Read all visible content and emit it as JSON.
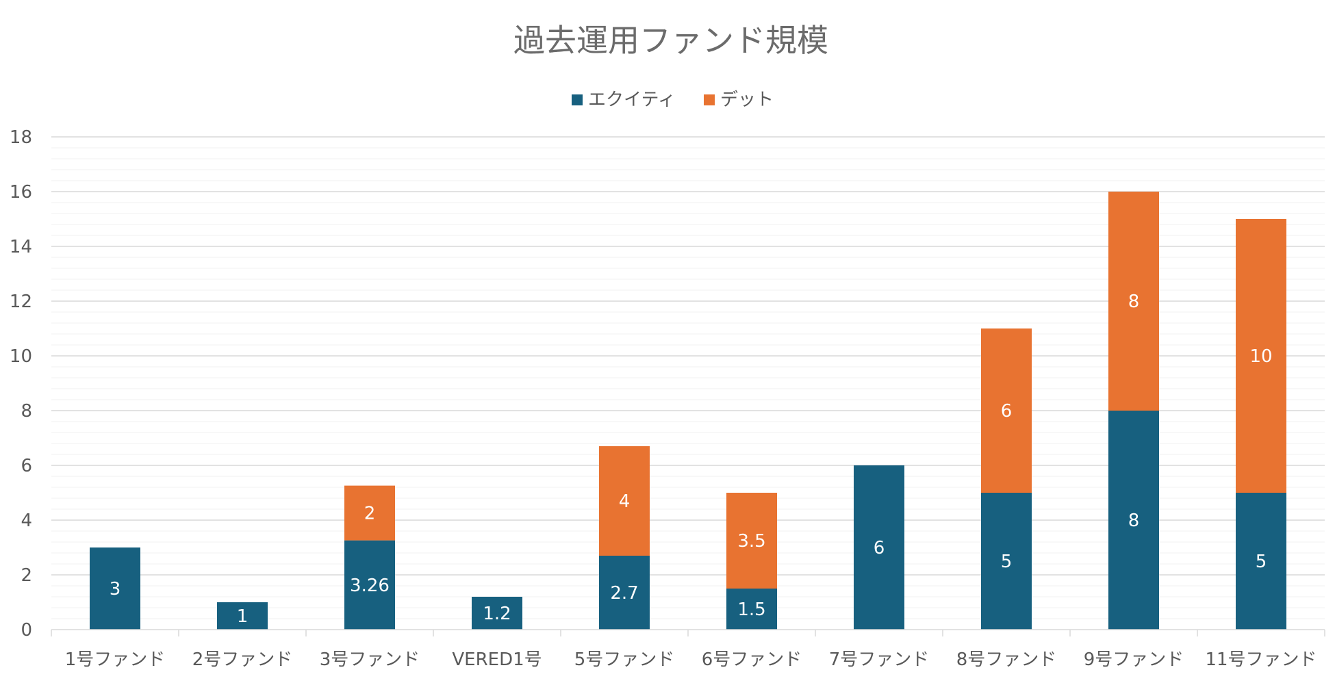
{
  "chart_data": {
    "type": "bar",
    "stacked": true,
    "title": "過去運用ファンド規模",
    "xlabel": "",
    "ylabel": "",
    "ylim": [
      0,
      18
    ],
    "y_ticks": [
      0,
      2,
      4,
      6,
      8,
      10,
      12,
      14,
      16,
      18
    ],
    "grid": true,
    "legend_position": "top",
    "categories": [
      "1号ファンド",
      "2号ファンド",
      "3号ファンド",
      "VERED1号",
      "5号ファンド",
      "6号ファンド",
      "7号ファンド",
      "8号ファンド",
      "9号ファンド",
      "11号ファンド"
    ],
    "series": [
      {
        "name": "エクイティ",
        "color": "#17607f",
        "values": [
          3,
          1,
          3.26,
          1.2,
          2.7,
          1.5,
          6,
          5,
          8,
          5
        ],
        "labels": [
          "3",
          "1",
          "3.26",
          "1.2",
          "2.7",
          "1.5",
          "6",
          "5",
          "8",
          "5"
        ]
      },
      {
        "name": "デット",
        "color": "#e87331",
        "values": [
          0,
          0,
          2,
          0,
          4,
          3.5,
          0,
          6,
          8,
          10
        ],
        "labels": [
          "",
          "",
          "2",
          "",
          "4",
          "3.5",
          "",
          "6",
          "8",
          "10"
        ]
      }
    ]
  }
}
